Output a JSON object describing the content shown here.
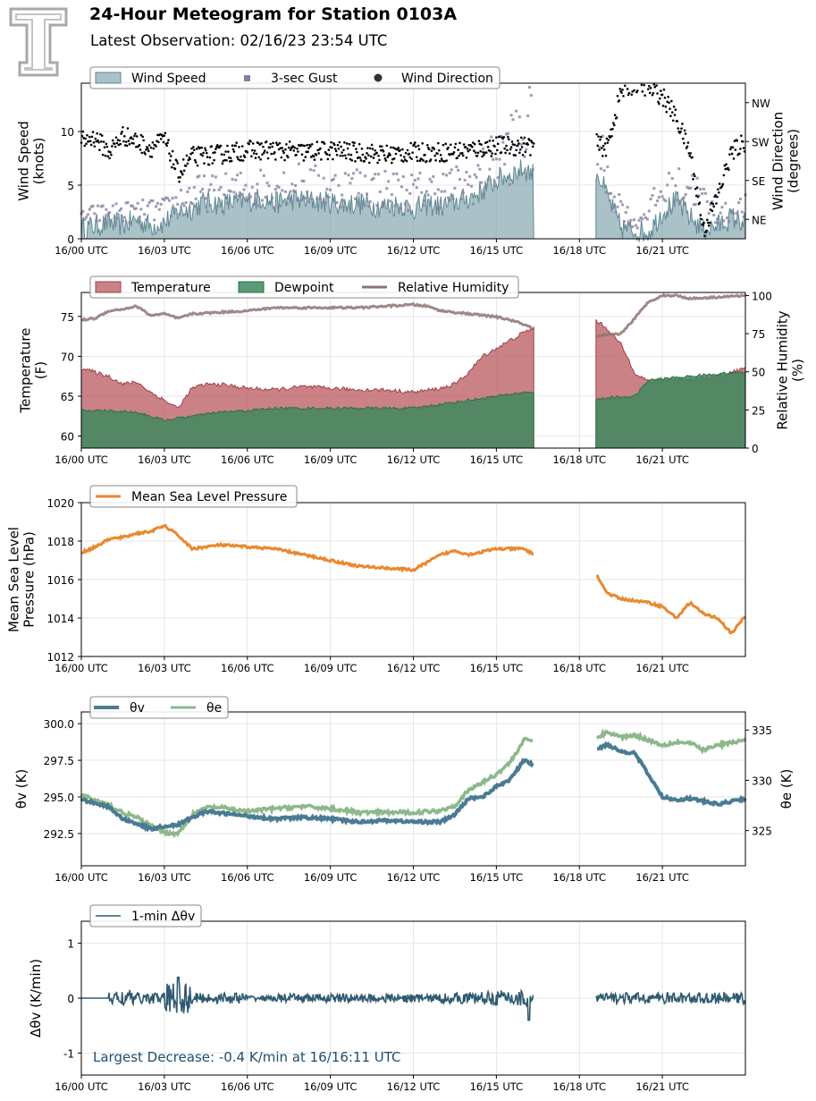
{
  "header": {
    "title": "24-Hour Meteogram for Station 0103A",
    "subtitle": "Latest Observation: 02/16/23 23:54 UTC"
  },
  "x_ticks": [
    "16/00 UTC",
    "16/03 UTC",
    "16/06 UTC",
    "16/09 UTC",
    "16/12 UTC",
    "16/15 UTC",
    "16/18 UTC",
    "16/21 UTC"
  ],
  "colors": {
    "wind": "#7ca0aa",
    "gust": "#8a7fa0",
    "direction": "#000000",
    "temperature": "#b8585e",
    "dewpoint": "#3f8a5f",
    "rh": "#8c7472",
    "pressure": "#e8892f",
    "theta_v": "#4a7b95",
    "theta_e": "#8db88a",
    "dtheta": "#2f5a70",
    "annotation": "#1f4e70"
  },
  "chart_data": [
    {
      "id": "wind",
      "type": "area",
      "xlabel": "",
      "ylabel": [
        "Wind Speed",
        "(knots)"
      ],
      "ylim": [
        0,
        14.5
      ],
      "yticks": [
        0,
        5,
        10
      ],
      "ylabel_right": [
        "Wind Direction",
        "(degrees)"
      ],
      "yticks_right": [
        "NE",
        "SE",
        "SW",
        "NW"
      ],
      "yticks_right_values": [
        45,
        135,
        225,
        315
      ],
      "ylim_right": [
        0,
        360
      ],
      "gap_hours": [
        16.35,
        18.6
      ],
      "legend": [
        "Wind Speed",
        "3-sec Gust",
        "Wind Direction"
      ],
      "series": [
        {
          "name": "Wind Speed",
          "x_hours": [
            0,
            0.5,
            1,
            1.5,
            2,
            2.5,
            3,
            3.5,
            4,
            4.5,
            5,
            5.5,
            6,
            6.5,
            7,
            7.5,
            8,
            8.5,
            9,
            9.5,
            10,
            10.5,
            11,
            11.5,
            12,
            12.5,
            13,
            13.5,
            14,
            14.5,
            15,
            15.5,
            16,
            16.35,
            18.6,
            19,
            19.5,
            20,
            20.5,
            21,
            21.5,
            22,
            22.5,
            23,
            23.5,
            24
          ],
          "values": [
            1,
            1.2,
            1.5,
            1.3,
            1.8,
            1.2,
            1.5,
            2.5,
            2.8,
            3.5,
            3.2,
            3.4,
            3.5,
            3.8,
            3.3,
            3.7,
            3.6,
            3.5,
            3.4,
            3.2,
            3.3,
            3.1,
            3.0,
            3.2,
            2.8,
            3.2,
            3.0,
            3.4,
            3.8,
            4.5,
            5.5,
            6.0,
            6.5,
            6.0,
            6.5,
            4.0,
            1.0,
            0.8,
            0.6,
            2.5,
            3.5,
            2.0,
            0.8,
            1.2,
            2.0,
            1.5
          ]
        },
        {
          "name": "3-sec Gust",
          "x_hours": [
            0,
            1,
            2,
            3,
            4,
            5,
            6,
            7,
            8,
            9,
            10,
            11,
            12,
            13,
            14,
            15,
            15.5,
            16,
            18.6,
            19,
            20,
            21,
            22,
            23,
            24
          ],
          "values": [
            2.5,
            2.8,
            3.0,
            3.2,
            5.0,
            5.0,
            5.5,
            5.8,
            6.0,
            5.5,
            5.8,
            5.5,
            5.2,
            5.5,
            6.0,
            8.5,
            10.0,
            12.0,
            11.0,
            6.0,
            1.5,
            5.0,
            6.0,
            2.5,
            3.5
          ]
        },
        {
          "name": "Wind Direction",
          "x_hours": [
            0,
            0.5,
            1,
            1.5,
            2,
            2.5,
            3,
            3.5,
            4,
            5,
            6,
            7,
            8,
            9,
            10,
            11,
            12,
            13,
            14,
            15,
            15.5,
            16,
            18.6,
            19,
            19.5,
            20,
            20.5,
            21,
            21.5,
            22,
            22.5,
            23,
            23.5,
            24
          ],
          "values": [
            225,
            235,
            200,
            240,
            225,
            210,
            230,
            150,
            190,
            195,
            205,
            205,
            200,
            205,
            200,
            195,
            200,
            200,
            205,
            215,
            215,
            215,
            220,
            210,
            340,
            360,
            350,
            330,
            280,
            200,
            20,
            100,
            200,
            225
          ]
        }
      ]
    },
    {
      "id": "temperature",
      "type": "area",
      "xlabel": "",
      "ylabel": [
        "Temperature",
        "(F)"
      ],
      "ylim": [
        58.5,
        78
      ],
      "yticks": [
        60,
        65,
        70,
        75
      ],
      "ylabel_right": [
        "Relative Humidity",
        "(%)"
      ],
      "ylim_right": [
        0,
        102
      ],
      "yticks_right": [
        0,
        25,
        50,
        75,
        100
      ],
      "gap_hours": [
        16.35,
        18.6
      ],
      "legend": [
        "Temperature",
        "Dewpoint",
        "Relative Humidity"
      ],
      "series": [
        {
          "name": "Temperature",
          "x_hours": [
            0,
            0.5,
            1,
            1.5,
            2,
            2.5,
            3,
            3.5,
            4,
            4.5,
            5,
            6,
            7,
            8,
            9,
            10,
            11,
            12,
            13,
            13.5,
            14,
            14.5,
            15,
            15.5,
            16,
            16.35,
            18.6,
            19,
            19.5,
            20,
            20.5,
            21,
            22,
            23,
            24
          ],
          "values": [
            68.5,
            68.0,
            67.5,
            66.5,
            66.8,
            65.5,
            64.5,
            63.5,
            66.0,
            66.5,
            66.5,
            66.0,
            65.8,
            66.2,
            66.0,
            65.8,
            65.8,
            65.5,
            66.0,
            66.5,
            68.0,
            70.0,
            71.0,
            72.0,
            73.0,
            73.5,
            74.5,
            73.5,
            71.5,
            68.0,
            66.8,
            67.0,
            67.2,
            67.5,
            68.5
          ]
        },
        {
          "name": "Dewpoint",
          "x_hours": [
            0,
            1,
            2,
            3,
            4,
            5,
            6,
            7,
            8,
            9,
            10,
            11,
            12,
            13,
            14,
            15,
            16,
            16.35,
            18.6,
            19,
            20,
            20.5,
            21,
            22,
            23,
            24
          ],
          "values": [
            63.2,
            63.2,
            63.0,
            62.0,
            62.5,
            63.0,
            63.2,
            63.5,
            63.5,
            63.5,
            63.5,
            63.5,
            63.5,
            64.0,
            64.5,
            65.0,
            65.5,
            65.5,
            64.5,
            64.8,
            65.0,
            67.0,
            67.2,
            67.5,
            67.8,
            68.0
          ]
        },
        {
          "name": "Relative Humidity",
          "x_hours": [
            0,
            0.5,
            1,
            1.5,
            2,
            2.5,
            3,
            3.5,
            4,
            5,
            6,
            7,
            8,
            9,
            10,
            11,
            12,
            12.5,
            13,
            14,
            15,
            15.5,
            16,
            16.35,
            18.6,
            19,
            19.5,
            20,
            20.5,
            21,
            21.5,
            22,
            23,
            24
          ],
          "values": [
            84,
            85,
            90,
            91,
            93,
            87,
            88,
            85,
            88,
            89,
            90,
            92,
            92,
            92,
            92,
            93,
            94,
            93,
            90,
            88,
            86,
            84,
            81,
            78,
            73,
            74,
            75,
            85,
            96,
            100,
            100,
            98,
            99,
            100
          ]
        }
      ]
    },
    {
      "id": "pressure",
      "type": "line",
      "xlabel": "",
      "ylabel": [
        "Mean Sea Level",
        "Pressure (hPa)"
      ],
      "ylim": [
        1012,
        1020
      ],
      "yticks": [
        1012,
        1014,
        1016,
        1018,
        1020
      ],
      "gap_hours": [
        16.35,
        18.6
      ],
      "legend": [
        "Mean Sea Level Pressure"
      ],
      "series": [
        {
          "name": "Mean Sea Level Pressure",
          "x_hours": [
            0,
            0.5,
            1,
            1.5,
            2,
            2.5,
            3,
            3.5,
            4,
            5,
            6,
            7,
            8,
            9,
            10,
            11,
            12,
            12.5,
            13,
            13.5,
            14,
            15,
            16,
            16.35,
            18.6,
            19,
            19.5,
            20,
            20.5,
            21,
            21.5,
            22,
            22.5,
            23,
            23.5,
            24
          ],
          "values": [
            1017.4,
            1017.7,
            1018.1,
            1018.2,
            1018.4,
            1018.5,
            1018.8,
            1018.3,
            1017.6,
            1017.8,
            1017.7,
            1017.6,
            1017.3,
            1017.0,
            1016.7,
            1016.6,
            1016.5,
            1016.9,
            1017.3,
            1017.5,
            1017.3,
            1017.6,
            1017.6,
            1017.3,
            1016.3,
            1015.3,
            1015.0,
            1014.9,
            1014.8,
            1014.6,
            1014.0,
            1014.8,
            1014.2,
            1014.0,
            1013.2,
            1014.1
          ]
        }
      ]
    },
    {
      "id": "theta",
      "type": "line",
      "xlabel": "",
      "ylabel": [
        "θv (K)"
      ],
      "ylim": [
        290.3,
        300.8
      ],
      "yticks": [
        292.5,
        295.0,
        297.5,
        300.0
      ],
      "ylabel_right": [
        "θe (K)"
      ],
      "ylim_right": [
        321.5,
        336.8
      ],
      "yticks_right": [
        325,
        330,
        335
      ],
      "gap_hours": [
        16.35,
        18.6
      ],
      "legend": [
        "θv",
        "θe"
      ],
      "series": [
        {
          "name": "θv",
          "x_hours": [
            0,
            0.5,
            1,
            1.5,
            2,
            2.5,
            3,
            3.5,
            4,
            4.5,
            5,
            6,
            7,
            8,
            9,
            10,
            11,
            12,
            13,
            13.5,
            14,
            14.5,
            15,
            15.5,
            16,
            16.35,
            18.6,
            19,
            19.5,
            20,
            20.5,
            21,
            21.5,
            22,
            23,
            24
          ],
          "values": [
            294.8,
            294.6,
            294.3,
            293.5,
            293.2,
            292.8,
            293.0,
            293.1,
            293.6,
            294.0,
            293.9,
            293.7,
            293.5,
            293.6,
            293.5,
            293.3,
            293.4,
            293.3,
            293.3,
            293.8,
            294.9,
            295.0,
            295.7,
            296.2,
            297.5,
            297.2,
            298.2,
            298.6,
            298.1,
            298.0,
            296.5,
            295.0,
            294.8,
            294.9,
            294.5,
            294.9
          ]
        },
        {
          "name": "θe",
          "x_hours": [
            0,
            0.5,
            1,
            1.5,
            2,
            2.5,
            3,
            3.5,
            4,
            4.5,
            5,
            6,
            7,
            8,
            9,
            10,
            11,
            12,
            13,
            13.5,
            14,
            14.5,
            15,
            15.5,
            16,
            16.35,
            18.6,
            19,
            19.5,
            20,
            21,
            21.5,
            22,
            22.5,
            23,
            24
          ],
          "values": [
            328.6,
            328.0,
            327.5,
            326.8,
            326.3,
            325.5,
            324.8,
            324.7,
            326.5,
            327.3,
            327.3,
            326.9,
            327.2,
            327.4,
            327.2,
            326.8,
            326.8,
            326.8,
            327.0,
            327.5,
            329.0,
            329.8,
            330.6,
            331.8,
            334.0,
            334.0,
            334.2,
            334.8,
            334.3,
            334.5,
            333.5,
            333.8,
            333.7,
            333.0,
            333.5,
            334.0
          ]
        }
      ]
    },
    {
      "id": "dtheta",
      "type": "line",
      "xlabel": "",
      "ylabel": [
        "Δθv (K/min)"
      ],
      "ylim": [
        -1.4,
        1.4
      ],
      "yticks": [
        -1,
        0,
        1
      ],
      "gap_hours": [
        16.35,
        18.6
      ],
      "legend": [
        "1-min Δθv"
      ],
      "annotation": "Largest Decrease: -0.4 K/min at 16/16:11 UTC",
      "series": [
        {
          "name": "1-min Δθv",
          "x_hours": [
            0,
            24
          ],
          "values": [
            0,
            0
          ],
          "amplitude": [
            0,
            0.15,
            0.1,
            0.3,
            0.1,
            0.1,
            0.05,
            0.08,
            0.08,
            0.08,
            0.08,
            0.08,
            0.08,
            0.1,
            0.12,
            0.15,
            0.2,
            0.2,
            0.1,
            0.1,
            0.1,
            0.1,
            0.1,
            0.1,
            0.1
          ]
        }
      ]
    }
  ]
}
